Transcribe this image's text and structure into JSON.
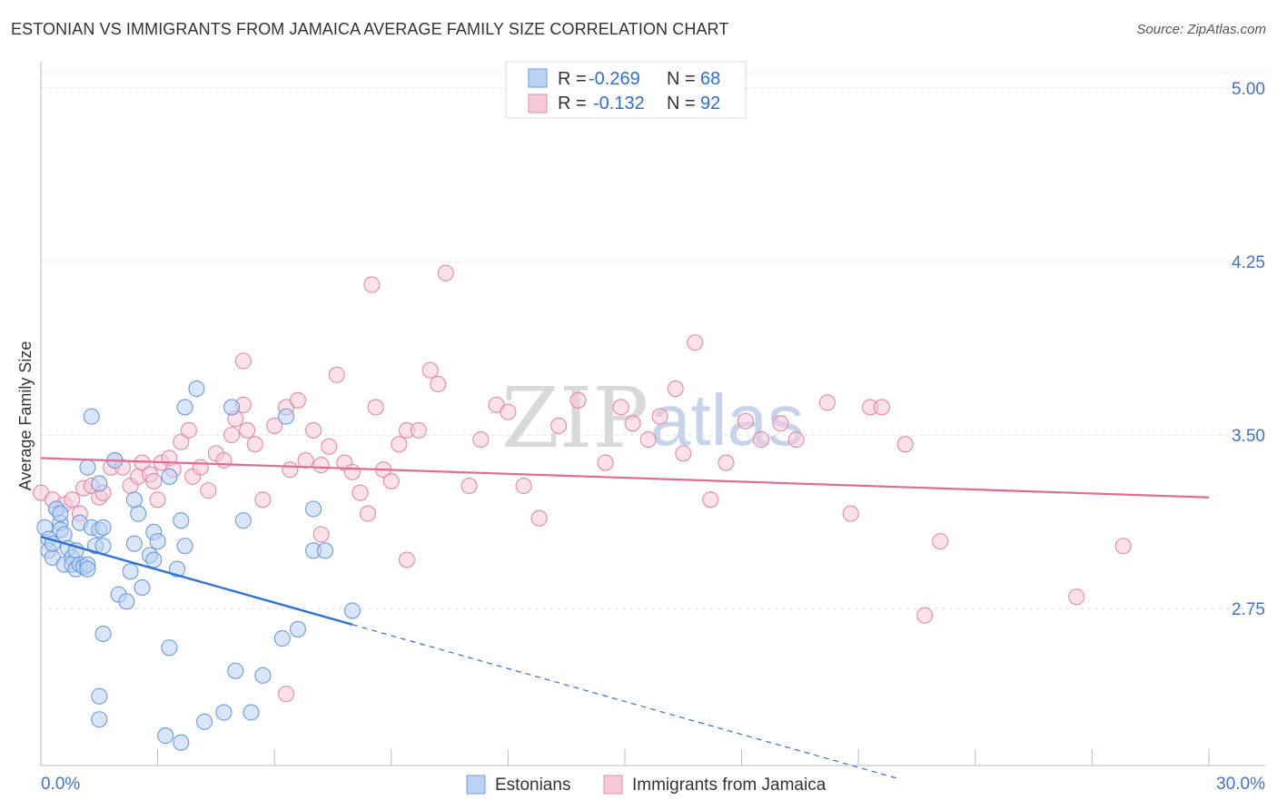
{
  "title": "ESTONIAN VS IMMIGRANTS FROM JAMAICA AVERAGE FAMILY SIZE CORRELATION CHART",
  "source": "Source: ZipAtlas.com",
  "watermark": {
    "zip": "ZIP",
    "atlas": "atlas"
  },
  "colors": {
    "estonians": "#6b9be0",
    "estonians_fill": "#bcd2f2",
    "estonians_line": "#2e73d2",
    "jamaica": "#e48aa8",
    "jamaica_fill": "#f6c9d8",
    "jamaica_line": "#e26a95",
    "grid": "#dddddd",
    "tick_text": "#4472c4"
  },
  "legend": {
    "rows": [
      {
        "r_label": "R = ",
        "r_value": "-0.269",
        "n_label": "N = ",
        "n_value": "68"
      },
      {
        "r_label": "R = ",
        "r_value": "-0.132",
        "n_label": "N = ",
        "n_value": "92"
      }
    ]
  },
  "bottom_legend": {
    "estonians": "Estonians",
    "jamaica": "Immigrants from Jamaica"
  },
  "chart_data": {
    "type": "scatter",
    "title": "ESTONIAN VS IMMIGRANTS FROM JAMAICA AVERAGE FAMILY SIZE CORRELATION CHART",
    "xlabel": "",
    "ylabel": "Average Family Size",
    "xlim": [
      0,
      30
    ],
    "ylim": [
      2.0,
      5.1
    ],
    "x_tick_labels": [
      "0.0%",
      "30.0%"
    ],
    "y_ticks": [
      5.0,
      4.25,
      3.5,
      2.75
    ],
    "y_tick_labels": [
      "5.00",
      "4.25",
      "3.50",
      "2.75"
    ],
    "series": [
      {
        "name": "Estonians",
        "R": -0.269,
        "N": 68,
        "trend": {
          "x0": 0.0,
          "y0": 3.06,
          "x1": 8.0,
          "y1": 2.68,
          "dash_x_end": 22.0
        },
        "points": [
          [
            0.1,
            3.1
          ],
          [
            0.2,
            3.05
          ],
          [
            0.2,
            3.0
          ],
          [
            0.3,
            2.97
          ],
          [
            0.3,
            3.03
          ],
          [
            0.4,
            3.18
          ],
          [
            0.4,
            3.18
          ],
          [
            0.5,
            3.12
          ],
          [
            0.5,
            3.09
          ],
          [
            0.5,
            3.16
          ],
          [
            0.6,
            2.94
          ],
          [
            0.6,
            3.07
          ],
          [
            0.7,
            3.01
          ],
          [
            0.8,
            2.97
          ],
          [
            0.8,
            2.94
          ],
          [
            0.9,
            2.92
          ],
          [
            0.9,
            3.0
          ],
          [
            1.0,
            2.94
          ],
          [
            1.0,
            3.12
          ],
          [
            1.1,
            2.93
          ],
          [
            1.2,
            2.94
          ],
          [
            1.2,
            2.92
          ],
          [
            1.3,
            3.1
          ],
          [
            1.4,
            3.02
          ],
          [
            1.5,
            3.09
          ],
          [
            1.6,
            3.02
          ],
          [
            1.6,
            3.1
          ],
          [
            1.2,
            3.36
          ],
          [
            1.5,
            3.29
          ],
          [
            1.3,
            3.58
          ],
          [
            1.9,
            3.39
          ],
          [
            2.0,
            2.81
          ],
          [
            1.6,
            2.64
          ],
          [
            1.5,
            2.37
          ],
          [
            1.5,
            2.27
          ],
          [
            2.2,
            2.78
          ],
          [
            2.3,
            2.91
          ],
          [
            2.6,
            2.84
          ],
          [
            2.4,
            3.03
          ],
          [
            2.5,
            3.16
          ],
          [
            2.4,
            3.22
          ],
          [
            2.8,
            2.98
          ],
          [
            2.9,
            3.08
          ],
          [
            2.9,
            2.96
          ],
          [
            3.0,
            3.04
          ],
          [
            3.3,
            3.32
          ],
          [
            3.5,
            2.92
          ],
          [
            3.6,
            3.13
          ],
          [
            3.7,
            3.02
          ],
          [
            3.3,
            2.58
          ],
          [
            3.2,
            2.2
          ],
          [
            3.6,
            2.17
          ],
          [
            3.7,
            3.62
          ],
          [
            4.0,
            3.7
          ],
          [
            4.2,
            2.26
          ],
          [
            4.7,
            2.3
          ],
          [
            4.9,
            3.62
          ],
          [
            5.0,
            2.48
          ],
          [
            5.2,
            3.13
          ],
          [
            5.4,
            2.3
          ],
          [
            6.3,
            3.58
          ],
          [
            6.2,
            2.62
          ],
          [
            7.0,
            3.18
          ],
          [
            7.0,
            3.0
          ],
          [
            6.6,
            2.66
          ],
          [
            5.7,
            2.46
          ],
          [
            7.3,
            3.0
          ],
          [
            8.0,
            2.74
          ]
        ]
      },
      {
        "name": "Immigrants from Jamaica",
        "R": -0.132,
        "N": 92,
        "trend": {
          "x0": 0.0,
          "y0": 3.4,
          "x1": 30.0,
          "y1": 3.23
        },
        "points": [
          [
            0.0,
            3.25
          ],
          [
            0.3,
            3.22
          ],
          [
            0.6,
            3.2
          ],
          [
            0.8,
            3.22
          ],
          [
            1.0,
            3.16
          ],
          [
            1.1,
            3.27
          ],
          [
            1.3,
            3.28
          ],
          [
            1.5,
            3.23
          ],
          [
            1.6,
            3.25
          ],
          [
            1.8,
            3.36
          ],
          [
            1.9,
            3.39
          ],
          [
            2.1,
            3.36
          ],
          [
            2.3,
            3.28
          ],
          [
            2.5,
            3.32
          ],
          [
            2.6,
            3.38
          ],
          [
            2.8,
            3.33
          ],
          [
            2.9,
            3.3
          ],
          [
            3.0,
            3.22
          ],
          [
            3.1,
            3.38
          ],
          [
            3.3,
            3.4
          ],
          [
            3.4,
            3.35
          ],
          [
            3.6,
            3.47
          ],
          [
            3.8,
            3.52
          ],
          [
            3.9,
            3.32
          ],
          [
            4.1,
            3.36
          ],
          [
            4.3,
            3.26
          ],
          [
            4.5,
            3.42
          ],
          [
            4.7,
            3.39
          ],
          [
            4.9,
            3.5
          ],
          [
            5.0,
            3.57
          ],
          [
            5.2,
            3.63
          ],
          [
            5.3,
            3.52
          ],
          [
            5.5,
            3.46
          ],
          [
            5.7,
            3.22
          ],
          [
            6.0,
            3.54
          ],
          [
            6.3,
            3.62
          ],
          [
            6.4,
            3.35
          ],
          [
            6.6,
            3.65
          ],
          [
            6.8,
            3.39
          ],
          [
            7.0,
            3.52
          ],
          [
            7.2,
            3.37
          ],
          [
            7.4,
            3.45
          ],
          [
            7.6,
            3.76
          ],
          [
            7.8,
            3.38
          ],
          [
            8.0,
            3.34
          ],
          [
            8.2,
            3.25
          ],
          [
            8.4,
            3.16
          ],
          [
            8.6,
            3.62
          ],
          [
            8.8,
            3.35
          ],
          [
            9.0,
            3.3
          ],
          [
            9.2,
            3.46
          ],
          [
            9.4,
            3.52
          ],
          [
            9.7,
            3.52
          ],
          [
            10.0,
            3.78
          ],
          [
            10.2,
            3.72
          ],
          [
            11.0,
            3.28
          ],
          [
            11.3,
            3.48
          ],
          [
            11.7,
            3.63
          ],
          [
            12.0,
            3.6
          ],
          [
            12.4,
            3.28
          ],
          [
            12.8,
            3.14
          ],
          [
            13.3,
            3.54
          ],
          [
            13.8,
            3.65
          ],
          [
            14.5,
            3.38
          ],
          [
            14.9,
            3.62
          ],
          [
            15.2,
            3.55
          ],
          [
            15.6,
            3.48
          ],
          [
            15.9,
            3.58
          ],
          [
            16.3,
            3.7
          ],
          [
            16.5,
            3.42
          ],
          [
            16.8,
            3.9
          ],
          [
            17.2,
            3.22
          ],
          [
            17.6,
            3.38
          ],
          [
            18.1,
            3.56
          ],
          [
            18.5,
            3.48
          ],
          [
            19.0,
            3.55
          ],
          [
            19.4,
            3.48
          ],
          [
            20.2,
            3.64
          ],
          [
            20.8,
            3.16
          ],
          [
            21.3,
            3.62
          ],
          [
            21.6,
            3.62
          ],
          [
            22.2,
            3.46
          ],
          [
            22.7,
            2.72
          ],
          [
            23.1,
            3.04
          ],
          [
            26.6,
            2.8
          ],
          [
            27.8,
            3.02
          ],
          [
            8.5,
            4.15
          ],
          [
            10.4,
            4.2
          ],
          [
            5.2,
            3.82
          ],
          [
            6.3,
            2.38
          ],
          [
            7.2,
            3.07
          ],
          [
            9.4,
            2.96
          ]
        ]
      }
    ]
  }
}
